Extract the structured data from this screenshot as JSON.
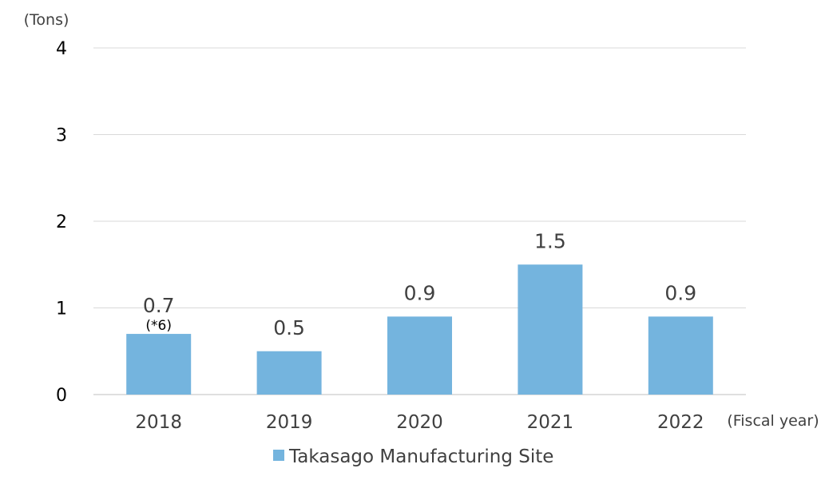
{
  "chart_data": {
    "type": "bar",
    "categories": [
      "2018",
      "2019",
      "2020",
      "2021",
      "2022"
    ],
    "series": [
      {
        "name": "Takasago Manufacturing Site",
        "values": [
          0.7,
          0.5,
          0.9,
          1.5,
          0.9
        ],
        "color": "#74b4de"
      }
    ],
    "data_labels": [
      "0.7",
      "0.5",
      "0.9",
      "1.5",
      "0.9"
    ],
    "annotations": [
      {
        "category": "2018",
        "text": "(*6)"
      }
    ],
    "y_unit_label": "(Tons)",
    "x_unit_label": "(Fiscal year)",
    "ylim": [
      0,
      4
    ],
    "yticks": [
      0,
      1,
      2,
      3,
      4
    ],
    "grid": true,
    "legend_position": "bottom-center"
  }
}
